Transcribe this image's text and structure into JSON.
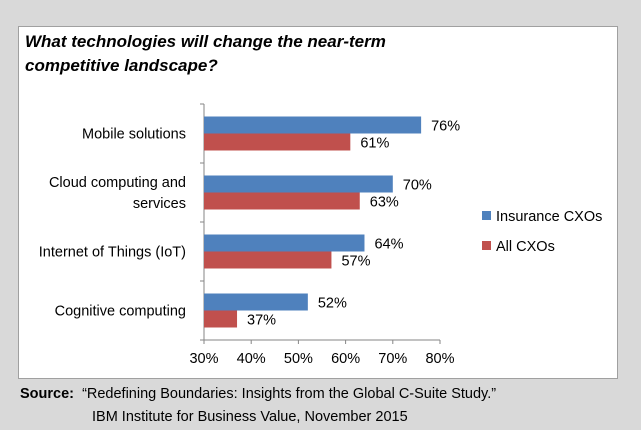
{
  "chart_data": {
    "type": "bar",
    "orientation": "horizontal",
    "title": "What technologies will change the near-term competitive landscape?",
    "categories": [
      "Mobile solutions",
      "Cloud computing and services",
      "Internet of Things (IoT)",
      "Cognitive computing"
    ],
    "category_lines": [
      [
        "Mobile solutions"
      ],
      [
        "Cloud computing and",
        "services"
      ],
      [
        "Internet of Things (IoT)"
      ],
      [
        "Cognitive computing"
      ]
    ],
    "series": [
      {
        "name": "Insurance CXOs",
        "color": "#4f81bd",
        "values": [
          76,
          70,
          64,
          52
        ],
        "labels": [
          "76%",
          "70%",
          "64%",
          "52%"
        ]
      },
      {
        "name": "All CXOs",
        "color": "#c0504d",
        "values": [
          61,
          63,
          57,
          37
        ],
        "labels": [
          "61%",
          "63%",
          "57%",
          "37%"
        ]
      }
    ],
    "xlim": [
      30,
      80
    ],
    "xticks": [
      "30%",
      "40%",
      "50%",
      "60%",
      "70%",
      "80%"
    ],
    "xlabel": "",
    "ylabel": "",
    "grid": false,
    "legend": "right"
  },
  "source": {
    "label": "Source:",
    "line1": "“Redefining Boundaries: Insights from the Global C-Suite Study.”",
    "line2": "IBM Institute for Business Value, November 2015"
  }
}
